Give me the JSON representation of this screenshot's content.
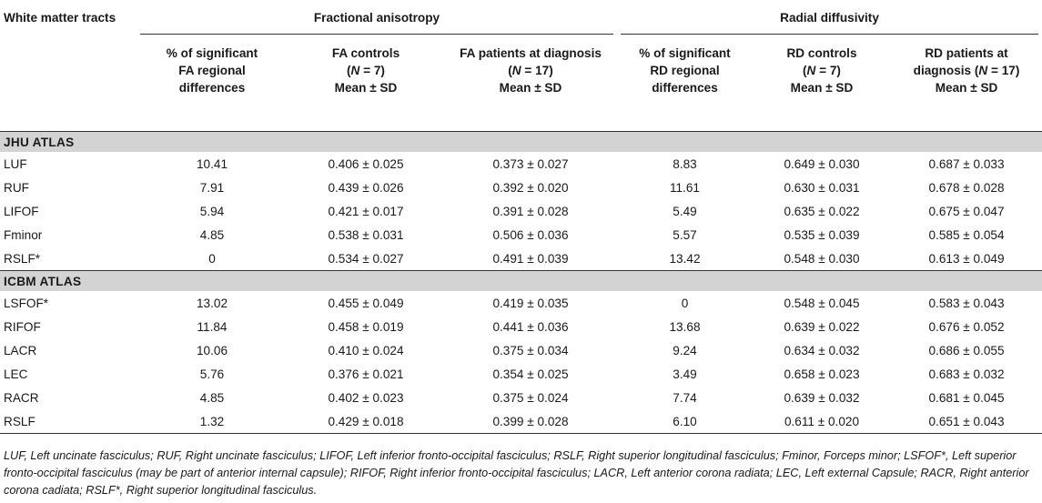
{
  "table": {
    "group_headers": {
      "tract": "White matter tracts",
      "fa": "Fractional anisotropy",
      "rd": "Radial diffusivity"
    },
    "column_headers": [
      {
        "line1": "% of significant",
        "line2": "FA regional",
        "line3": "differences"
      },
      {
        "line1": "FA controls",
        "line2_pre": "(",
        "n": "N",
        "line2_post": " = 7)",
        "line3": "Mean ± SD"
      },
      {
        "line1": "FA patients at diagnosis",
        "line2_pre": "(",
        "n": "N",
        "line2_post": " = 17)",
        "line3": "Mean ± SD"
      },
      {
        "line1": "% of significant",
        "line2": "RD regional",
        "line3": "differences"
      },
      {
        "line1": "RD controls",
        "line2_pre": "(",
        "n": "N",
        "line2_post": " = 7)",
        "line3": "Mean ± SD"
      },
      {
        "line1": "RD patients at",
        "line2_pre": "diagnosis (",
        "n": "N",
        "line2_post": " = 17)",
        "line3": "Mean ± SD"
      }
    ],
    "sections": [
      {
        "title": "JHU ATLAS",
        "rows": [
          [
            "LUF",
            "10.41",
            "0.406 ± 0.025",
            "0.373 ± 0.027",
            "8.83",
            "0.649 ± 0.030",
            "0.687 ± 0.033"
          ],
          [
            "RUF",
            "7.91",
            "0.439 ± 0.026",
            "0.392 ± 0.020",
            "11.61",
            "0.630 ± 0.031",
            "0.678 ± 0.028"
          ],
          [
            "LIFOF",
            "5.94",
            "0.421 ± 0.017",
            "0.391 ± 0.028",
            "5.49",
            "0.635 ± 0.022",
            "0.675 ± 0.047"
          ],
          [
            "Fminor",
            "4.85",
            "0.538 ± 0.031",
            "0.506 ± 0.036",
            "5.57",
            "0.535 ± 0.039",
            "0.585 ± 0.054"
          ],
          [
            "RSLF*",
            "0",
            "0.534 ± 0.027",
            "0.491 ± 0.039",
            "13.42",
            "0.548 ± 0.030",
            "0.613 ± 0.049"
          ]
        ]
      },
      {
        "title": "ICBM ATLAS",
        "rows": [
          [
            "LSFOF*",
            "13.02",
            "0.455 ± 0.049",
            "0.419 ± 0.035",
            "0",
            "0.548 ± 0.045",
            "0.583 ± 0.043"
          ],
          [
            "RIFOF",
            "11.84",
            "0.458 ± 0.019",
            "0.441 ± 0.036",
            "13.68",
            "0.639 ± 0.022",
            "0.676 ± 0.052"
          ],
          [
            "LACR",
            "10.06",
            "0.410 ± 0.024",
            "0.375 ± 0.034",
            "9.24",
            "0.634 ± 0.032",
            "0.686 ± 0.055"
          ],
          [
            "LEC",
            "5.76",
            "0.376 ± 0.021",
            "0.354 ± 0.025",
            "3.49",
            "0.658 ± 0.023",
            "0.683 ± 0.032"
          ],
          [
            "RACR",
            "4.85",
            "0.402 ± 0.023",
            "0.375 ± 0.024",
            "7.74",
            "0.639 ± 0.032",
            "0.681 ± 0.045"
          ],
          [
            "RSLF",
            "1.32",
            "0.429 ± 0.018",
            "0.399 ± 0.028",
            "6.10",
            "0.611 ± 0.020",
            "0.651 ± 0.043"
          ]
        ]
      }
    ]
  },
  "footnote": "LUF, Left uncinate fasciculus; RUF, Right uncinate fasciculus; LIFOF, Left inferior fronto-occipital fasciculus; RSLF, Right superior longitudinal fasciculus; Fminor, Forceps minor; LSFOF*, Left superior fronto-occipital fasciculus (may be part of anterior internal capsule); RIFOF, Right inferior fronto-occipital fasciculus; LACR, Left anterior corona radiata; LEC, Left external Capsule; RACR, Right anterior corona cadiata; RSLF*, Right superior longitudinal fasciculus."
}
